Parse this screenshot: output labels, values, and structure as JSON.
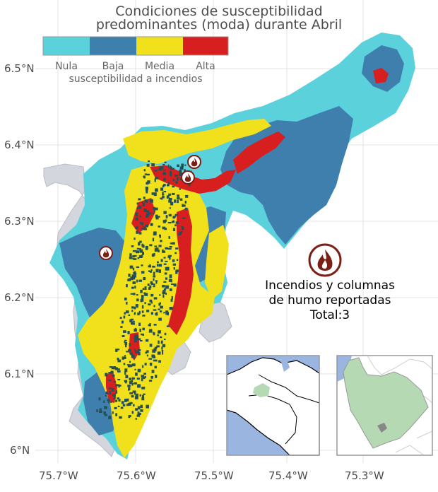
{
  "title_line1": "Condiciones de susceptibilidad",
  "title_line2": "predominantes (moda) durante Abril",
  "legend": {
    "title": "susceptibilidad a incendios",
    "classes": [
      {
        "label": "Nula",
        "color": "#5bd1dc"
      },
      {
        "label": "Baja",
        "color": "#3f7fad"
      },
      {
        "label": "Media",
        "color": "#f1e01c"
      },
      {
        "label": "Alta",
        "color": "#d71f1f"
      }
    ]
  },
  "axes": {
    "lat_ticks": [
      "6.5°N",
      "6.4°N",
      "6.3°N",
      "6.2°N",
      "6.1°N",
      "6°N"
    ],
    "lon_ticks": [
      "75.7°W",
      "75.6°W",
      "75.5°W",
      "75.4°W",
      "75.3°W"
    ]
  },
  "colors": {
    "outside_region": "#d3d6dc",
    "mixed_cells": "#244f55",
    "fire_icon": "#7a1e16",
    "inset_water": "#9ab5e0",
    "inset_highlight": "#b5d9b3"
  },
  "fires": {
    "count": 3,
    "note_line1": "Incendios y columnas",
    "note_line2": "de humo reportadas",
    "note_line3": "Total:3",
    "icon": "fire-icon"
  }
}
